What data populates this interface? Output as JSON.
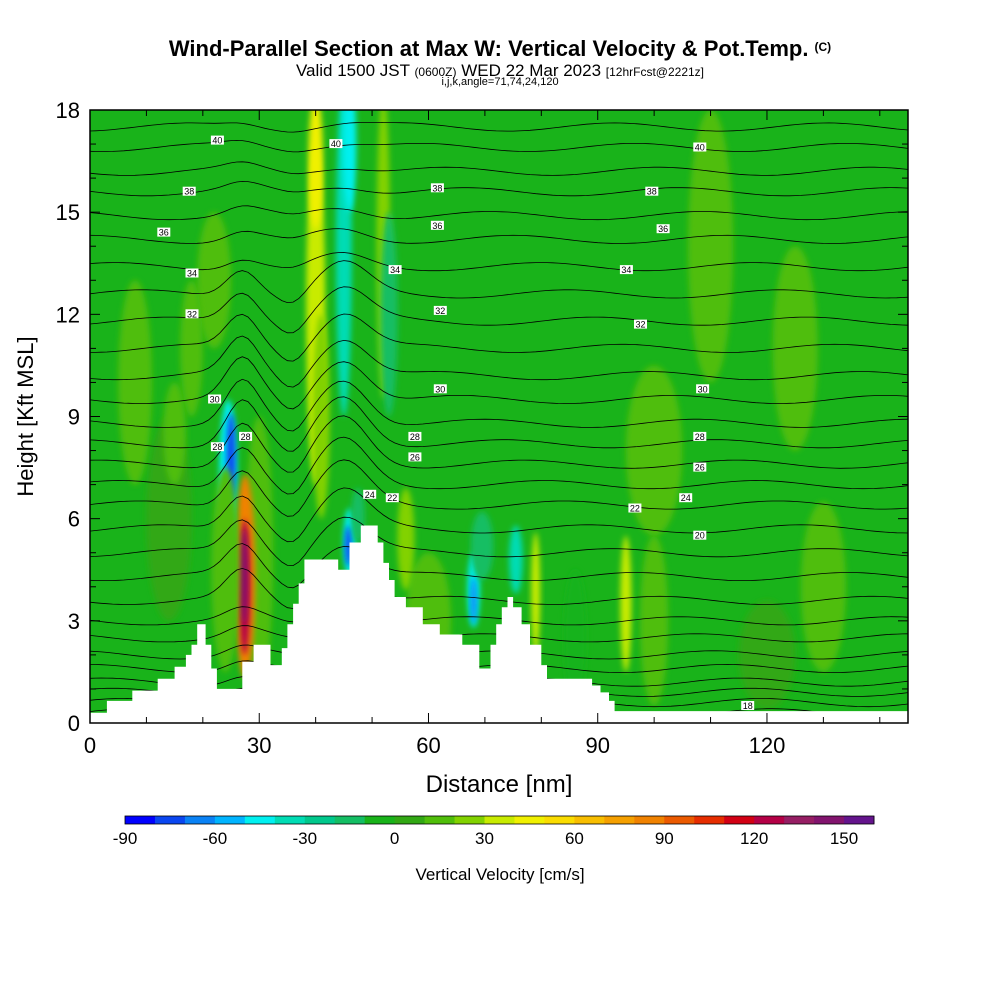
{
  "header": {
    "title": "Wind-Parallel Section at Max W: Vertical Velocity & Pot.Temp.",
    "copyright": "(C)",
    "valid_prefix": "Valid 1500 JST",
    "utc": "(0600Z)",
    "valid_suffix": "WED 22 Mar 2023",
    "forecast": "[12hrFcst@2221z]",
    "params": "i,j,k,angle=71,74,24,120"
  },
  "colors": {
    "background_green": "#19b31a",
    "terrain": "#ffffff",
    "contour": "#000000",
    "frame": "#000000"
  },
  "chart_data": {
    "type": "heatmap",
    "title": "Wind-Parallel Section at Max W: Vertical Velocity & Pot.Temp.",
    "xlabel": "Distance [nm]",
    "ylabel": "Height [Kft MSL]",
    "xlim": [
      0,
      145
    ],
    "ylim": [
      0,
      18
    ],
    "x_ticks": [
      "0",
      "30",
      "60",
      "90",
      "120"
    ],
    "y_ticks": [
      "0",
      "3",
      "6",
      "9",
      "12",
      "15",
      "18"
    ],
    "colorbar": {
      "label": "Vertical Velocity [cm/s]",
      "tick_labels": [
        "-90",
        "-60",
        "-30",
        "0",
        "30",
        "60",
        "90",
        "120",
        "150"
      ],
      "range": [
        -90,
        160
      ],
      "step": 10,
      "colors": [
        "#0000ff",
        "#0a46f0",
        "#0a82f5",
        "#00b4ff",
        "#00f0f0",
        "#00dcb4",
        "#00c88c",
        "#14be64",
        "#19b31a",
        "#32a814",
        "#50be0a",
        "#82d200",
        "#c8eb00",
        "#f0f000",
        "#fadc00",
        "#f8be00",
        "#f5a000",
        "#f08200",
        "#eb5a00",
        "#e62d00",
        "#d20014",
        "#b40046",
        "#961e64",
        "#82146e",
        "#64148c"
      ]
    },
    "contour_labels": [
      "40",
      "38",
      "36",
      "34",
      "32",
      "30",
      "28",
      "26",
      "24",
      "22",
      "20",
      "18"
    ],
    "terrain_profile": [
      [
        0,
        0.3
      ],
      [
        3,
        0.3
      ],
      [
        3,
        0.65
      ],
      [
        7.5,
        0.65
      ],
      [
        7.5,
        0.95
      ],
      [
        12,
        0.95
      ],
      [
        12,
        1.3
      ],
      [
        15,
        1.3
      ],
      [
        15,
        1.65
      ],
      [
        17,
        1.65
      ],
      [
        17,
        2.0
      ],
      [
        18,
        2.0
      ],
      [
        18,
        2.3
      ],
      [
        19,
        2.3
      ],
      [
        19,
        2.9
      ],
      [
        20.5,
        2.9
      ],
      [
        20.5,
        2.3
      ],
      [
        21.5,
        2.3
      ],
      [
        21.5,
        1.6
      ],
      [
        22.5,
        1.6
      ],
      [
        22.5,
        1.0
      ],
      [
        27,
        1.0
      ],
      [
        27,
        1.8
      ],
      [
        29,
        1.8
      ],
      [
        29,
        2.3
      ],
      [
        32,
        2.3
      ],
      [
        32,
        1.7
      ],
      [
        34,
        1.7
      ],
      [
        34,
        2.2
      ],
      [
        35,
        2.2
      ],
      [
        35,
        2.9
      ],
      [
        36,
        2.9
      ],
      [
        36,
        3.5
      ],
      [
        37,
        3.5
      ],
      [
        37,
        4.1
      ],
      [
        38,
        4.1
      ],
      [
        38,
        4.8
      ],
      [
        44,
        4.8
      ],
      [
        44,
        4.5
      ],
      [
        46,
        4.5
      ],
      [
        46,
        5.3
      ],
      [
        48,
        5.3
      ],
      [
        48,
        5.8
      ],
      [
        51,
        5.8
      ],
      [
        51,
        5.3
      ],
      [
        52,
        5.3
      ],
      [
        52,
        4.7
      ],
      [
        53,
        4.7
      ],
      [
        53,
        4.2
      ],
      [
        54,
        4.2
      ],
      [
        54,
        3.7
      ],
      [
        56,
        3.7
      ],
      [
        56,
        3.4
      ],
      [
        59,
        3.4
      ],
      [
        59,
        2.9
      ],
      [
        62,
        2.9
      ],
      [
        62,
        2.6
      ],
      [
        66,
        2.6
      ],
      [
        66,
        2.3
      ],
      [
        69,
        2.3
      ],
      [
        69,
        1.6
      ],
      [
        71,
        1.6
      ],
      [
        71,
        2.3
      ],
      [
        72,
        2.3
      ],
      [
        72,
        2.9
      ],
      [
        73,
        2.9
      ],
      [
        73,
        3.4
      ],
      [
        74,
        3.4
      ],
      [
        74,
        3.7
      ],
      [
        75,
        3.7
      ],
      [
        75,
        3.4
      ],
      [
        76.5,
        3.4
      ],
      [
        76.5,
        2.9
      ],
      [
        78,
        2.9
      ],
      [
        78,
        2.3
      ],
      [
        80,
        2.3
      ],
      [
        80,
        1.7
      ],
      [
        81,
        1.7
      ],
      [
        81,
        1.3
      ],
      [
        89,
        1.3
      ],
      [
        89,
        1.1
      ],
      [
        90.5,
        1.1
      ],
      [
        90.5,
        0.9
      ],
      [
        92,
        0.9
      ],
      [
        92,
        0.65
      ],
      [
        93,
        0.65
      ],
      [
        93,
        0.35
      ],
      [
        145,
        0.35
      ]
    ]
  }
}
